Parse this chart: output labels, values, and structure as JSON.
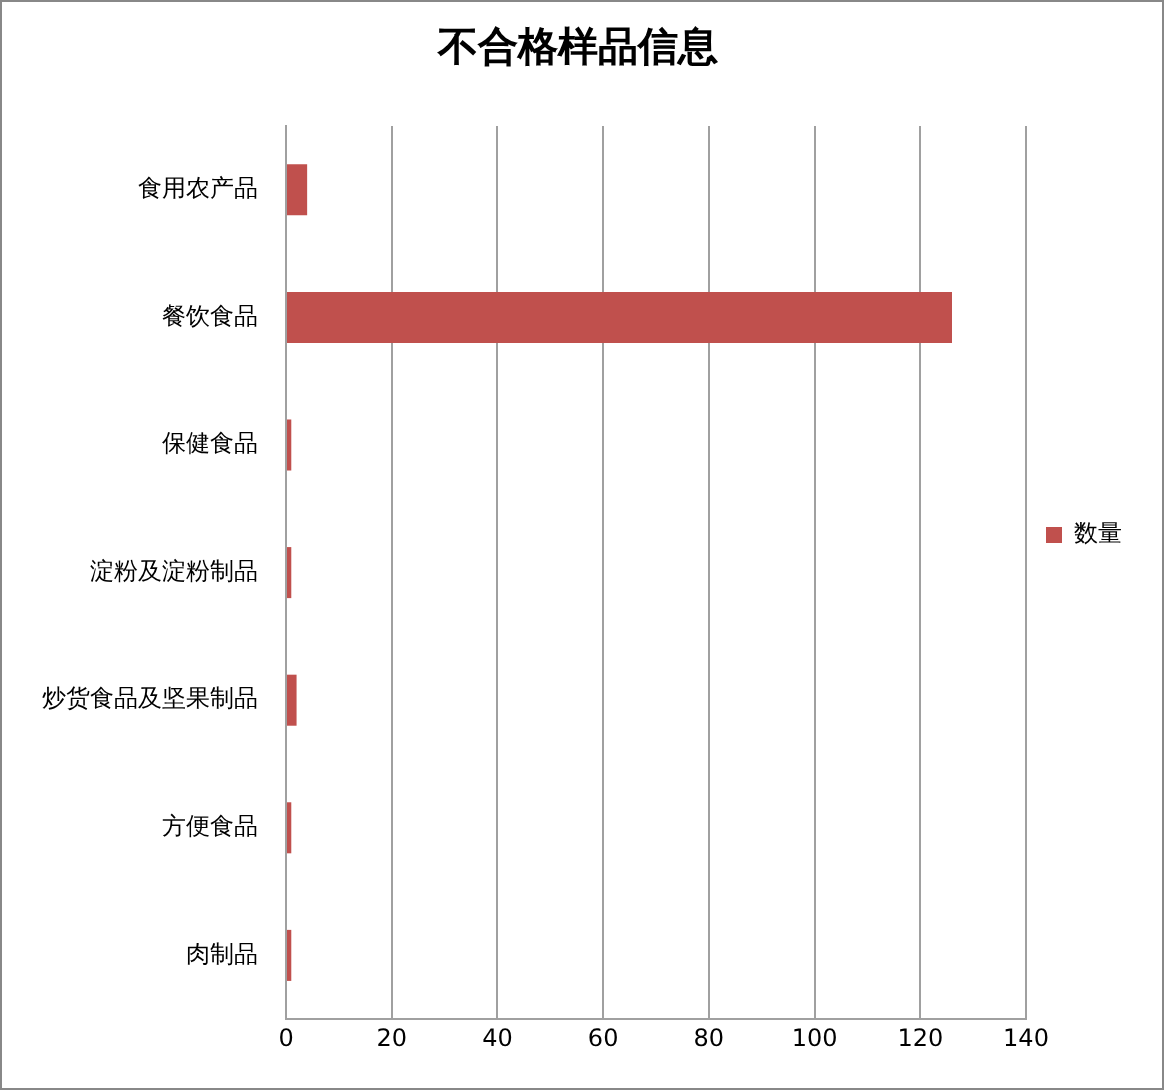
{
  "chart_data": {
    "type": "bar",
    "title": "不合格样品信息",
    "orientation": "horizontal",
    "categories": [
      "食用农产品",
      "餐饮食品",
      "保健食品",
      "淀粉及淀粉制品",
      "炒货食品及坚果制品",
      "方便食品",
      "肉制品"
    ],
    "series": [
      {
        "name": "数量",
        "color": "#c0504d",
        "values": [
          4,
          126,
          1,
          1,
          2,
          1,
          1
        ]
      }
    ],
    "xlim": [
      0,
      140
    ],
    "xticks": [
      0,
      20,
      40,
      60,
      80,
      100,
      120,
      140
    ],
    "grid": "x",
    "legend": "right"
  }
}
